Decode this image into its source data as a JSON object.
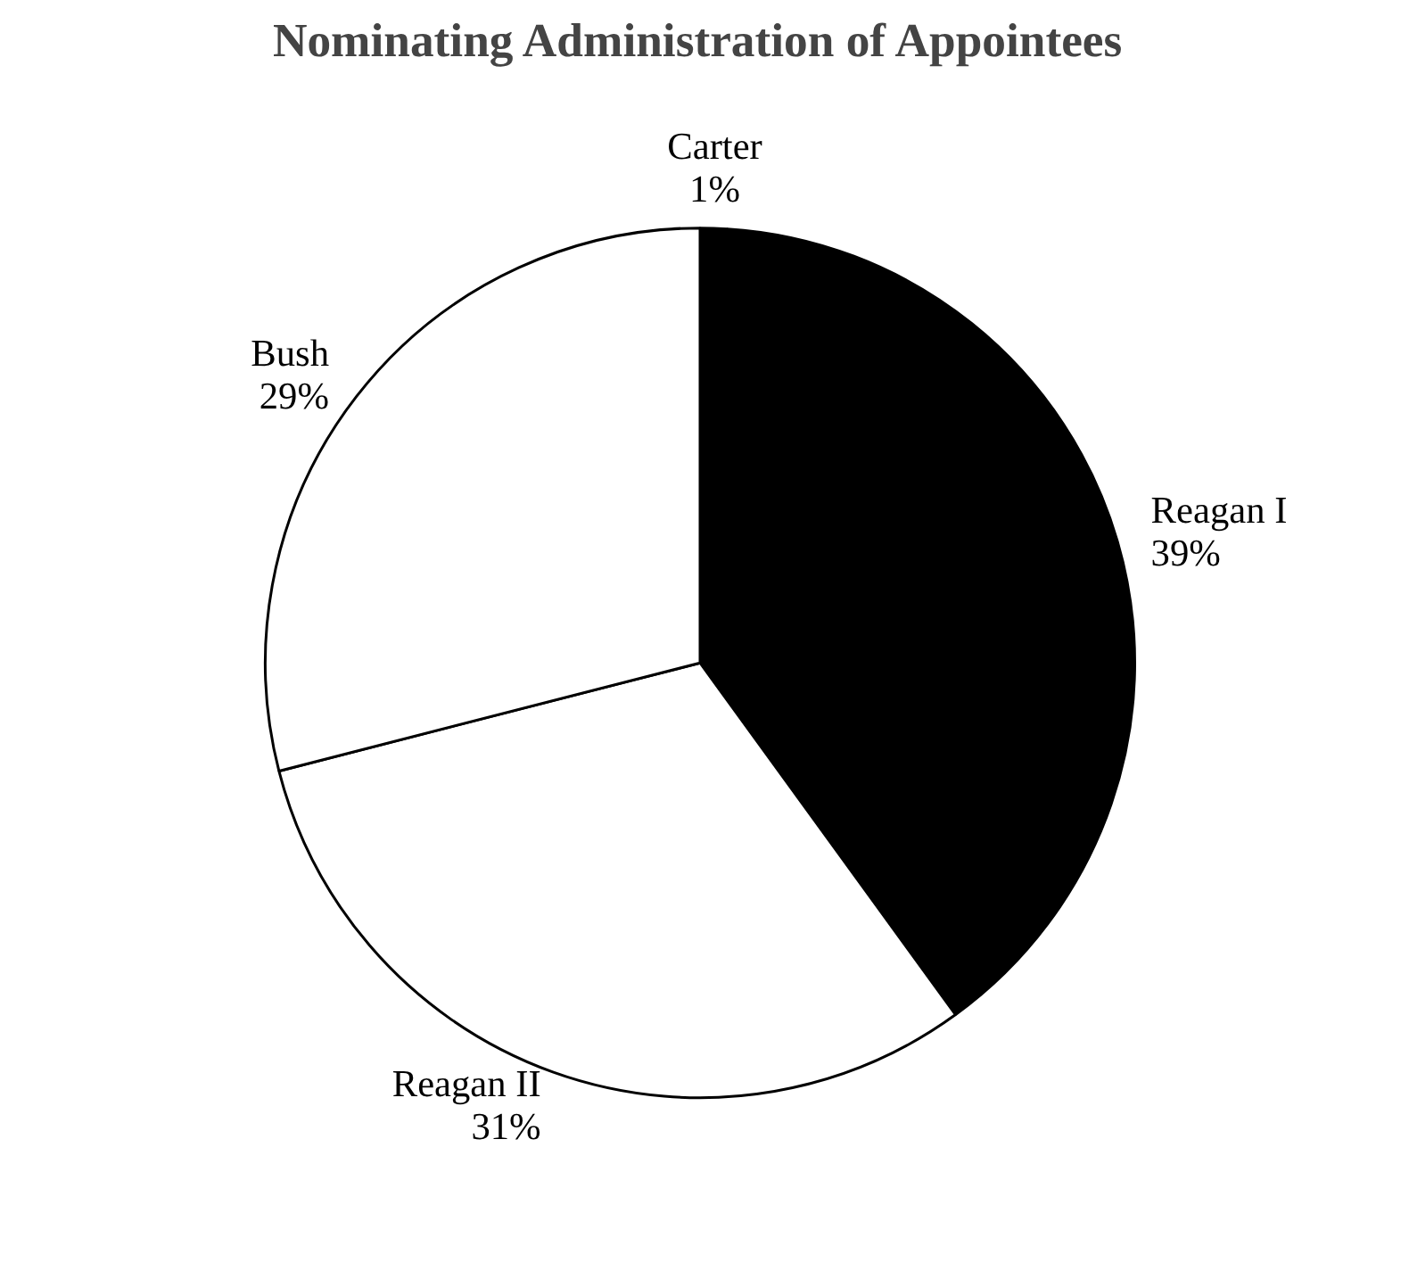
{
  "chart_data": {
    "type": "pie",
    "title": "Nominating Administration of Appointees",
    "categories": [
      "Carter",
      "Reagan I",
      "Reagan II",
      "Bush"
    ],
    "values": [
      1,
      39,
      31,
      29
    ],
    "value_labels": [
      "1%",
      "39%",
      "31%",
      "29%"
    ],
    "colors": [
      "#000000",
      "#000000",
      "#ffffff",
      "#ffffff"
    ]
  }
}
